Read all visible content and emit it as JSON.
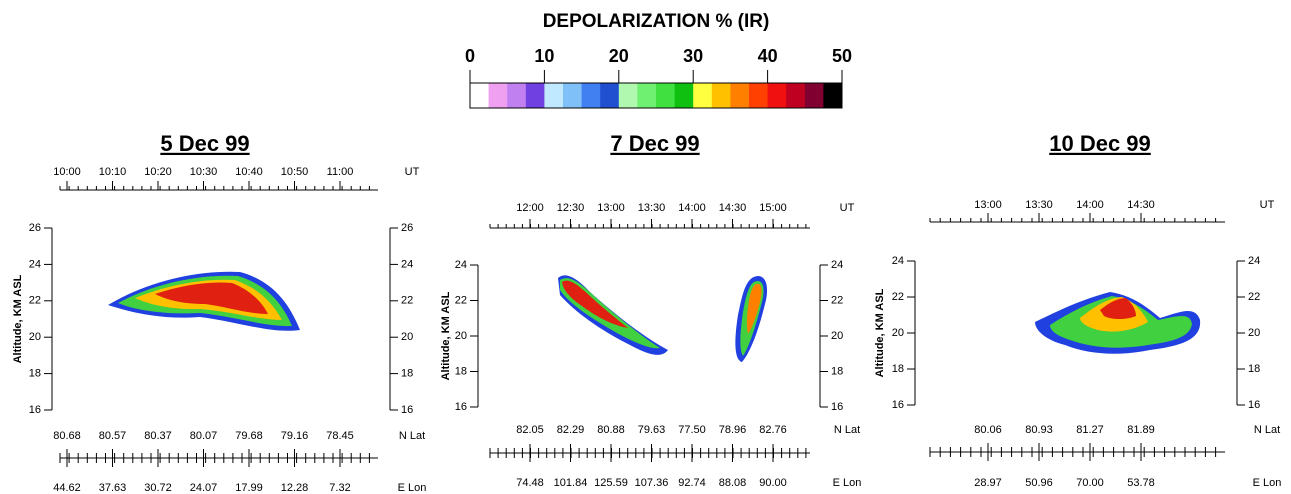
{
  "colorbar": {
    "title": "DEPOLARIZATION % (IR)",
    "lim": [
      0,
      50
    ],
    "ticks": [
      0,
      10,
      20,
      30,
      40,
      50
    ],
    "colors": [
      "#ffffff",
      "#f0a0f0",
      "#c080f0",
      "#7040e0",
      "#c0e8ff",
      "#80c0f8",
      "#4080f0",
      "#2050d0",
      "#b0f8b0",
      "#70f070",
      "#40e040",
      "#10c010",
      "#ffff40",
      "#ffc000",
      "#ff8000",
      "#ff4000",
      "#f01010",
      "#c00020",
      "#800030",
      "#000000"
    ]
  },
  "chart_data": [
    {
      "type": "lidar",
      "title": "5 Dec 99",
      "ut_label": "UT",
      "ut_ticks": [
        "10:00",
        "10:10",
        "10:20",
        "10:30",
        "10:40",
        "10:50",
        "11:00"
      ],
      "ylabel": "Altitude, KM ASL",
      "ylim": [
        16,
        26
      ],
      "yticks": [
        16,
        18,
        20,
        22,
        24,
        26
      ],
      "lat_label": "N Lat",
      "lat": [
        "80.68",
        "80.57",
        "80.37",
        "80.07",
        "79.68",
        "79.16",
        "78.45"
      ],
      "lon_label": "E Lon",
      "lon": [
        "44.62",
        "37.63",
        "30.72",
        "24.07",
        "17.99",
        "12.28",
        "7.32"
      ]
    },
    {
      "type": "lidar",
      "title": "7 Dec 99",
      "ut_label": "UT",
      "ut_ticks": [
        "12:00",
        "12:30",
        "13:00",
        "13:30",
        "14:00",
        "14:30",
        "15:00"
      ],
      "ylabel": "Altitude, KM ASL",
      "ylim": [
        16,
        24
      ],
      "yticks": [
        16,
        18,
        20,
        22,
        24
      ],
      "lat_label": "N Lat",
      "lat": [
        "82.05",
        "82.29",
        "80.88",
        "79.63",
        "77.50",
        "78.96",
        "82.76"
      ],
      "lon_label": "E Lon",
      "lon": [
        "74.48",
        "101.84",
        "125.59",
        "107.36",
        "92.74",
        "88.08",
        "90.00"
      ]
    },
    {
      "type": "lidar",
      "title": "10 Dec 99",
      "ut_label": "UT",
      "ut_ticks": [
        "13:00",
        "13:30",
        "14:00",
        "14:30"
      ],
      "ylabel": "Altitude, KM ASL",
      "ylim": [
        16,
        24
      ],
      "yticks": [
        16,
        18,
        20,
        22,
        24
      ],
      "lat_label": "N Lat",
      "lat": [
        "80.06",
        "80.93",
        "81.27",
        "81.89"
      ],
      "lon_label": "E Lon",
      "lon": [
        "28.97",
        "50.96",
        "70.00",
        "53.78"
      ]
    }
  ]
}
